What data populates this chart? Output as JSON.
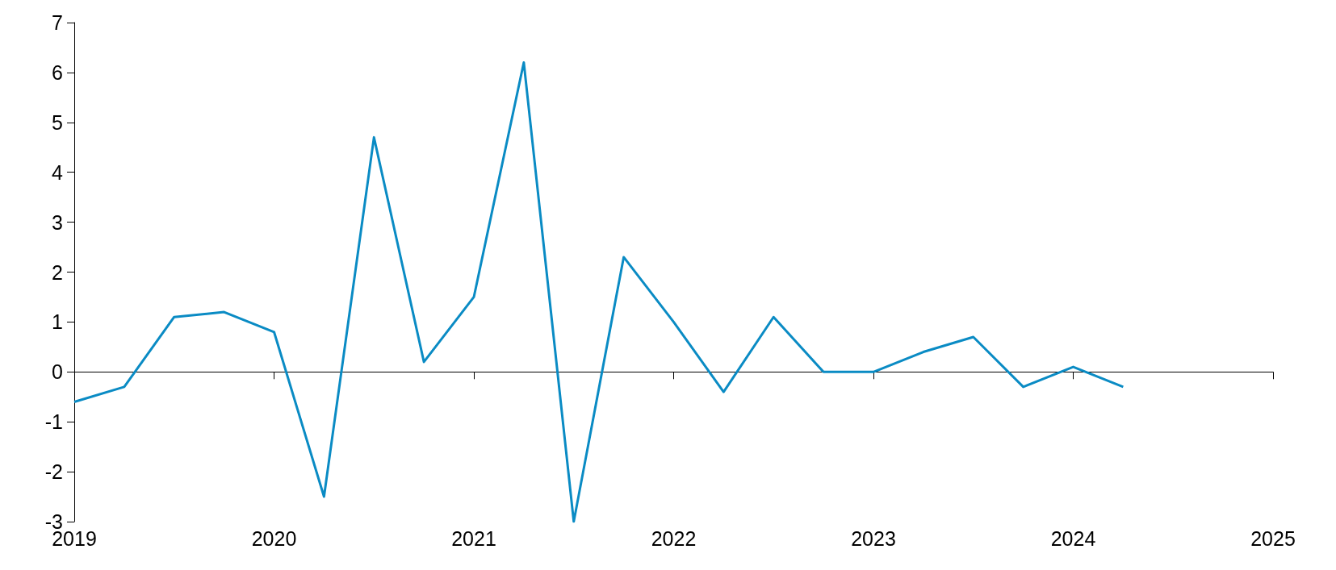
{
  "chart_data": {
    "type": "line",
    "x": [
      2019,
      2019.25,
      2019.5,
      2019.75,
      2020,
      2020.25,
      2020.5,
      2020.75,
      2021,
      2021.25,
      2021.5,
      2021.75,
      2022,
      2022.25,
      2022.5,
      2022.75,
      2023,
      2023.25,
      2023.5,
      2023.75,
      2024,
      2024.25
    ],
    "series": [
      {
        "color": "#0a8bc4",
        "values": [
          -0.6,
          -0.3,
          1.1,
          1.2,
          0.8,
          -2.5,
          4.7,
          0.2,
          1.5,
          6.2,
          -3.0,
          2.3,
          1.0,
          -0.4,
          1.1,
          0.0,
          0.0,
          0.4,
          0.7,
          -0.3,
          0.1,
          -0.3
        ]
      }
    ],
    "xlim": [
      2019,
      2025
    ],
    "xticks": [
      2019,
      2020,
      2021,
      2022,
      2023,
      2024,
      2025
    ],
    "ylim": [
      -3,
      7
    ],
    "yticks": [
      -3,
      -2,
      -1,
      0,
      1,
      2,
      3,
      4,
      5,
      6,
      7
    ],
    "marker": "none",
    "line_style": "solid"
  }
}
